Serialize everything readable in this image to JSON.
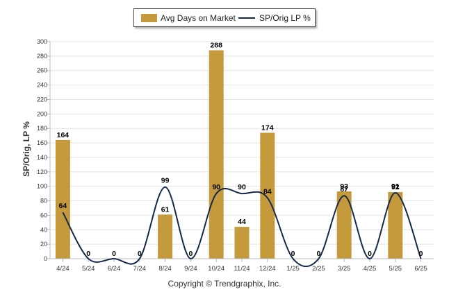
{
  "legend": {
    "bar_label": "Avg Days on Market",
    "line_label": "SP/Orig LP %"
  },
  "ylabel": "SP/Orig, LP %",
  "copyright": "Copyright © Trendgraphix, Inc.",
  "colors": {
    "bar": "#C49A3C",
    "line": "#15294C",
    "grid": "#e4e4e4",
    "axis": "#bbbbbb"
  },
  "chart_data": {
    "type": "bar",
    "categories": [
      "4/24",
      "5/24",
      "6/24",
      "7/24",
      "8/24",
      "9/24",
      "10/24",
      "11/24",
      "12/24",
      "1/25",
      "2/25",
      "3/25",
      "4/25",
      "5/25",
      "6/25"
    ],
    "series": [
      {
        "name": "Avg Days on Market",
        "type": "bar",
        "values": [
          164,
          0,
          0,
          0,
          61,
          0,
          288,
          44,
          174,
          0,
          0,
          93,
          0,
          92,
          0
        ],
        "labels": [
          "164",
          "",
          "0",
          "",
          "61",
          "",
          "288",
          "44",
          "174",
          "",
          "",
          "93",
          "",
          "92",
          ""
        ]
      },
      {
        "name": "SP/Orig LP %",
        "type": "line",
        "values": [
          64,
          0,
          0,
          0,
          99,
          0,
          90,
          90,
          84,
          0,
          0,
          87,
          0,
          91,
          0
        ],
        "labels": [
          "64",
          "0",
          "",
          "0",
          "99",
          "0",
          "90",
          "90",
          "84",
          "0",
          "0",
          "87",
          "0",
          "91",
          "0"
        ]
      }
    ],
    "ylim": [
      0,
      300
    ],
    "yticks": [
      0,
      20,
      40,
      60,
      80,
      100,
      120,
      140,
      160,
      180,
      200,
      220,
      240,
      260,
      280,
      300
    ],
    "ylabel": "SP/Orig, LP %",
    "grid": true,
    "legend_position": "top-center"
  }
}
